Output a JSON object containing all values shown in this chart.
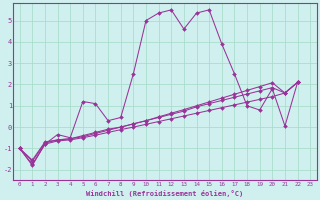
{
  "xlabel": "Windchill (Refroidissement éolien,°C)",
  "background_color": "#cff0ee",
  "grid_color": "#aaddcc",
  "line_color": "#993399",
  "xlim": [
    -0.5,
    23.5
  ],
  "ylim": [
    -2.5,
    5.8
  ],
  "xticks": [
    0,
    1,
    2,
    3,
    4,
    5,
    6,
    7,
    8,
    9,
    10,
    11,
    12,
    13,
    14,
    15,
    16,
    17,
    18,
    19,
    20,
    21,
    22,
    23
  ],
  "yticks": [
    -2,
    -1,
    0,
    1,
    2,
    3,
    4,
    5
  ],
  "s1_x": [
    0,
    1,
    2,
    3,
    4,
    5,
    6,
    7,
    8,
    9,
    10,
    11,
    12,
    13,
    14,
    15,
    16,
    17,
    18,
    19,
    20,
    21,
    22
  ],
  "s1_y": [
    -1.0,
    -1.8,
    -0.8,
    -0.35,
    -0.5,
    1.2,
    1.1,
    0.3,
    0.45,
    2.5,
    5.0,
    5.35,
    5.5,
    4.6,
    5.35,
    5.5,
    3.9,
    2.5,
    1.0,
    0.8,
    1.8,
    0.05,
    2.1
  ],
  "s2_x": [
    0,
    1,
    2,
    3,
    4,
    5,
    6,
    7,
    8,
    9,
    10,
    11,
    12,
    13,
    14,
    15,
    16,
    17,
    18,
    19,
    20,
    21,
    22
  ],
  "s2_y": [
    -1.0,
    -1.6,
    -0.75,
    -0.6,
    -0.55,
    -0.4,
    -0.25,
    -0.1,
    0.0,
    0.15,
    0.3,
    0.45,
    0.6,
    0.75,
    0.95,
    1.1,
    1.25,
    1.4,
    1.55,
    1.7,
    1.85,
    1.6,
    2.1
  ],
  "s3_x": [
    0,
    1,
    2,
    3,
    4,
    5,
    6,
    7,
    8,
    9,
    10,
    11,
    12,
    13,
    14,
    15,
    16,
    17,
    18,
    19,
    20,
    21,
    22
  ],
  "s3_y": [
    -1.0,
    -1.55,
    -0.7,
    -0.6,
    -0.55,
    -0.45,
    -0.3,
    -0.15,
    0.0,
    0.15,
    0.3,
    0.48,
    0.65,
    0.82,
    1.0,
    1.18,
    1.36,
    1.54,
    1.72,
    1.9,
    2.08,
    1.6,
    2.1
  ],
  "s4_x": [
    0,
    1,
    2,
    3,
    4,
    5,
    6,
    7,
    8,
    9,
    10,
    11,
    12,
    13,
    14,
    15,
    16,
    17,
    18,
    19,
    20,
    21,
    22
  ],
  "s4_y": [
    -1.0,
    -1.75,
    -0.8,
    -0.65,
    -0.6,
    -0.5,
    -0.38,
    -0.25,
    -0.12,
    0.0,
    0.13,
    0.26,
    0.39,
    0.52,
    0.65,
    0.78,
    0.91,
    1.04,
    1.17,
    1.3,
    1.43,
    1.6,
    2.1
  ]
}
